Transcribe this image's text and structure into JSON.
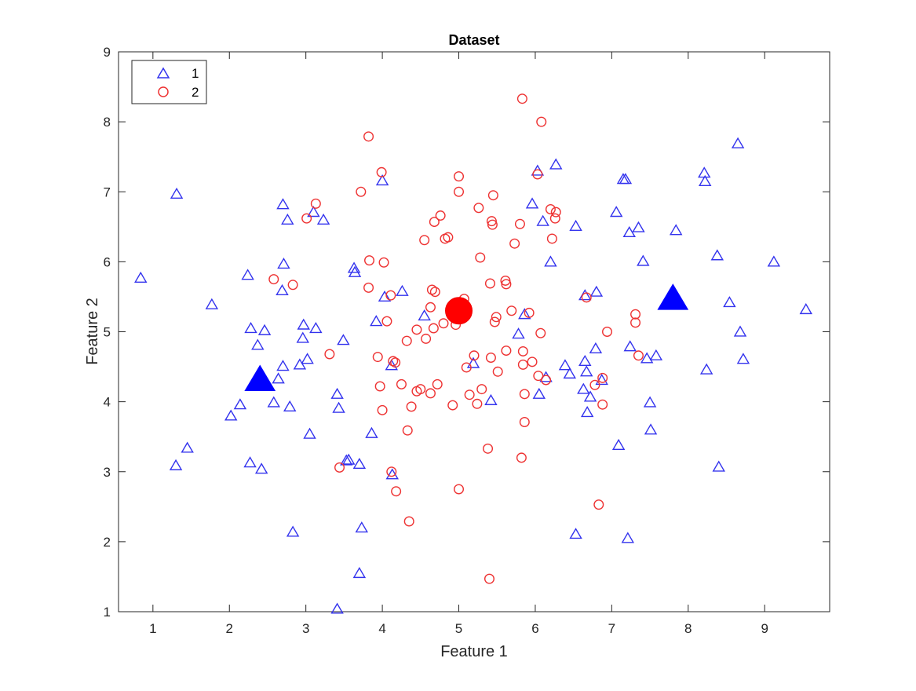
{
  "chart_data": {
    "type": "scatter",
    "title": "Dataset",
    "xlabel": "Feature 1",
    "ylabel": "Feature 2",
    "xlim": [
      0.55,
      9.85
    ],
    "ylim": [
      1,
      9
    ],
    "xticks": [
      1,
      2,
      3,
      4,
      5,
      6,
      7,
      8,
      9
    ],
    "yticks": [
      1,
      2,
      3,
      4,
      5,
      6,
      7,
      8,
      9
    ],
    "legend_position": "top-left",
    "series": [
      {
        "name": "1",
        "marker": "triangle",
        "color": "#3333ee",
        "points": [
          [
            0.84,
            5.77
          ],
          [
            1.31,
            6.97
          ],
          [
            1.3,
            3.09
          ],
          [
            1.45,
            3.34
          ],
          [
            1.77,
            5.39
          ],
          [
            2.02,
            3.8
          ],
          [
            2.14,
            3.96
          ],
          [
            2.24,
            5.81
          ],
          [
            2.28,
            5.05
          ],
          [
            2.27,
            3.13
          ],
          [
            2.37,
            4.81
          ],
          [
            2.42,
            3.04
          ],
          [
            2.46,
            5.02
          ],
          [
            2.58,
            3.99
          ],
          [
            2.64,
            4.33
          ],
          [
            2.7,
            4.51
          ],
          [
            2.69,
            5.59
          ],
          [
            2.71,
            5.97
          ],
          [
            2.7,
            6.82
          ],
          [
            2.76,
            6.6
          ],
          [
            2.79,
            3.93
          ],
          [
            2.83,
            2.14
          ],
          [
            2.92,
            4.53
          ],
          [
            2.96,
            4.91
          ],
          [
            2.97,
            5.1
          ],
          [
            3.02,
            4.61
          ],
          [
            3.05,
            3.54
          ],
          [
            3.1,
            6.71
          ],
          [
            3.13,
            5.05
          ],
          [
            3.23,
            6.6
          ],
          [
            3.41,
            4.11
          ],
          [
            3.41,
            1.04
          ],
          [
            3.43,
            3.91
          ],
          [
            3.49,
            4.88
          ],
          [
            3.53,
            3.16
          ],
          [
            3.56,
            3.17
          ],
          [
            3.63,
            5.91
          ],
          [
            3.64,
            5.85
          ],
          [
            3.7,
            3.11
          ],
          [
            3.7,
            1.55
          ],
          [
            3.73,
            2.2
          ],
          [
            3.86,
            3.55
          ],
          [
            3.92,
            5.15
          ],
          [
            4.0,
            7.16
          ],
          [
            4.03,
            5.5
          ],
          [
            4.12,
            4.52
          ],
          [
            4.13,
            2.96
          ],
          [
            4.26,
            5.58
          ],
          [
            4.55,
            5.23
          ],
          [
            5.19,
            4.55
          ],
          [
            5.42,
            4.02
          ],
          [
            5.78,
            4.97
          ],
          [
            5.86,
            5.25
          ],
          [
            5.96,
            6.83
          ],
          [
            6.03,
            7.3
          ],
          [
            6.05,
            4.11
          ],
          [
            6.1,
            6.58
          ],
          [
            6.14,
            4.35
          ],
          [
            6.2,
            6.0
          ],
          [
            6.27,
            7.39
          ],
          [
            6.39,
            4.52
          ],
          [
            6.45,
            4.4
          ],
          [
            6.53,
            6.51
          ],
          [
            6.53,
            2.11
          ],
          [
            6.63,
            4.18
          ],
          [
            6.65,
            4.58
          ],
          [
            6.67,
            4.43
          ],
          [
            6.68,
            3.85
          ],
          [
            6.72,
            4.07
          ],
          [
            6.79,
            4.76
          ],
          [
            6.8,
            5.57
          ],
          [
            6.87,
            4.31
          ],
          [
            6.65,
            5.52
          ],
          [
            7.06,
            6.71
          ],
          [
            7.09,
            3.38
          ],
          [
            7.15,
            7.18
          ],
          [
            7.18,
            7.18
          ],
          [
            7.21,
            2.05
          ],
          [
            7.23,
            6.42
          ],
          [
            7.24,
            4.79
          ],
          [
            7.35,
            6.49
          ],
          [
            7.41,
            6.01
          ],
          [
            7.46,
            4.62
          ],
          [
            7.5,
            3.99
          ],
          [
            7.51,
            3.6
          ],
          [
            7.58,
            4.66
          ],
          [
            7.84,
            6.45
          ],
          [
            8.21,
            7.27
          ],
          [
            8.22,
            7.15
          ],
          [
            8.24,
            4.46
          ],
          [
            8.38,
            6.09
          ],
          [
            8.4,
            3.07
          ],
          [
            8.54,
            5.42
          ],
          [
            8.65,
            7.69
          ],
          [
            8.68,
            5.0
          ],
          [
            8.72,
            4.61
          ],
          [
            9.12,
            6.0
          ],
          [
            9.54,
            5.32
          ]
        ]
      },
      {
        "name": "2",
        "marker": "circle",
        "color": "#ee3333",
        "points": [
          [
            2.58,
            5.75
          ],
          [
            2.83,
            5.67
          ],
          [
            3.01,
            6.62
          ],
          [
            3.13,
            6.83
          ],
          [
            3.31,
            4.68
          ],
          [
            3.44,
            3.06
          ],
          [
            3.72,
            7.0
          ],
          [
            3.82,
            7.79
          ],
          [
            3.82,
            5.63
          ],
          [
            3.83,
            6.02
          ],
          [
            3.94,
            4.64
          ],
          [
            3.97,
            4.22
          ],
          [
            3.99,
            7.28
          ],
          [
            4.0,
            3.88
          ],
          [
            4.02,
            5.99
          ],
          [
            4.06,
            5.15
          ],
          [
            4.11,
            5.52
          ],
          [
            4.12,
            3.0
          ],
          [
            4.14,
            4.58
          ],
          [
            4.17,
            4.56
          ],
          [
            4.18,
            2.72
          ],
          [
            4.25,
            4.25
          ],
          [
            4.32,
            4.87
          ],
          [
            4.33,
            3.59
          ],
          [
            4.35,
            2.29
          ],
          [
            4.38,
            3.93
          ],
          [
            4.45,
            5.03
          ],
          [
            4.45,
            4.15
          ],
          [
            4.5,
            4.18
          ],
          [
            4.55,
            6.31
          ],
          [
            4.57,
            4.9
          ],
          [
            4.63,
            4.12
          ],
          [
            4.63,
            5.35
          ],
          [
            4.65,
            5.6
          ],
          [
            4.67,
            5.05
          ],
          [
            4.68,
            6.57
          ],
          [
            4.69,
            5.57
          ],
          [
            4.72,
            4.25
          ],
          [
            4.76,
            6.66
          ],
          [
            4.8,
            5.12
          ],
          [
            4.82,
            6.33
          ],
          [
            4.86,
            6.35
          ],
          [
            4.92,
            3.95
          ],
          [
            4.96,
            5.1
          ],
          [
            4.97,
            5.22
          ],
          [
            4.99,
            5.28
          ],
          [
            5.0,
            7.22
          ],
          [
            5.0,
            7.0
          ],
          [
            5.0,
            2.75
          ],
          [
            5.07,
            5.47
          ],
          [
            5.1,
            4.49
          ],
          [
            5.14,
            4.1
          ],
          [
            5.2,
            4.66
          ],
          [
            5.24,
            3.97
          ],
          [
            5.26,
            6.77
          ],
          [
            5.28,
            6.06
          ],
          [
            5.3,
            4.18
          ],
          [
            5.38,
            3.33
          ],
          [
            5.4,
            1.47
          ],
          [
            5.41,
            5.69
          ],
          [
            5.42,
            4.63
          ],
          [
            5.43,
            6.58
          ],
          [
            5.44,
            6.53
          ],
          [
            5.45,
            6.95
          ],
          [
            5.47,
            5.14
          ],
          [
            5.49,
            5.21
          ],
          [
            5.51,
            4.43
          ],
          [
            5.61,
            5.73
          ],
          [
            5.62,
            5.68
          ],
          [
            5.62,
            4.73
          ],
          [
            5.69,
            5.3
          ],
          [
            5.73,
            6.26
          ],
          [
            5.8,
            6.54
          ],
          [
            5.82,
            3.2
          ],
          [
            5.83,
            8.33
          ],
          [
            5.84,
            4.72
          ],
          [
            5.84,
            4.53
          ],
          [
            5.86,
            4.11
          ],
          [
            5.86,
            3.71
          ],
          [
            5.92,
            5.27
          ],
          [
            5.96,
            4.57
          ],
          [
            6.03,
            7.25
          ],
          [
            6.04,
            4.37
          ],
          [
            6.07,
            4.98
          ],
          [
            6.08,
            8.0
          ],
          [
            6.14,
            4.31
          ],
          [
            6.2,
            6.75
          ],
          [
            6.22,
            6.33
          ],
          [
            6.26,
            6.62
          ],
          [
            6.27,
            6.71
          ],
          [
            6.67,
            5.49
          ],
          [
            6.78,
            4.24
          ],
          [
            6.83,
            2.53
          ],
          [
            6.88,
            4.34
          ],
          [
            6.88,
            3.96
          ],
          [
            6.94,
            5.0
          ],
          [
            7.31,
            5.25
          ],
          [
            7.31,
            5.13
          ],
          [
            7.35,
            4.66
          ]
        ]
      }
    ],
    "centroids": [
      {
        "series": "1",
        "x": 2.4,
        "y": 4.32
      },
      {
        "series": "1",
        "x": 7.8,
        "y": 5.48
      },
      {
        "series": "2",
        "x": 5.0,
        "y": 5.3
      }
    ]
  }
}
